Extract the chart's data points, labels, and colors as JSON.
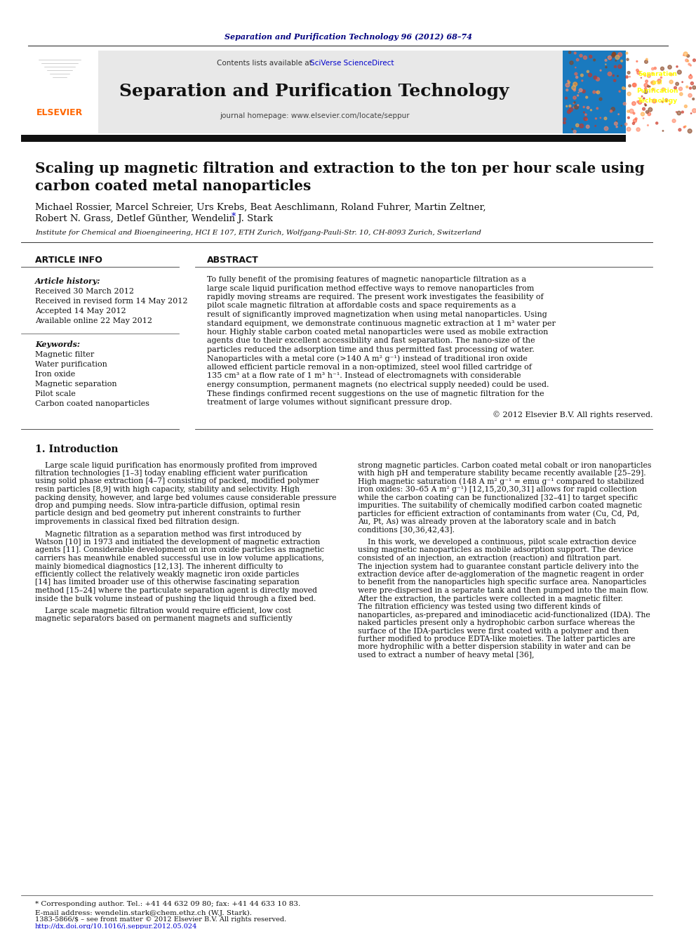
{
  "journal_ref": "Separation and Purification Technology 96 (2012) 68–74",
  "contents_line": "Contents lists available at ",
  "sciverse": "SciVerse ScienceDirect",
  "journal_name": "Separation and Purification Technology",
  "journal_homepage": "journal homepage: www.elsevier.com/locate/seppur",
  "paper_title_line1": "Scaling up magnetic filtration and extraction to the ton per hour scale using",
  "paper_title_line2": "carbon coated metal nanoparticles",
  "authors": "Michael Rossier, Marcel Schreier, Urs Krebs, Beat Aeschlimann, Roland Fuhrer, Martin Zeltner,",
  "authors2": "Robert N. Grass, Detlef Günther, Wendelin J. Stark",
  "authors2_star": "*",
  "affiliation": "Institute for Chemical and Bioengineering, HCI E 107, ETH Zurich, Wolfgang-Pauli-Str. 10, CH-8093 Zurich, Switzerland",
  "article_info_label": "ARTICLE INFO",
  "abstract_label": "ABSTRACT",
  "article_history_label": "Article history:",
  "received": "Received 30 March 2012",
  "received_revised": "Received in revised form 14 May 2012",
  "accepted": "Accepted 14 May 2012",
  "available": "Available online 22 May 2012",
  "keywords_label": "Keywords:",
  "keyword1": "Magnetic filter",
  "keyword2": "Water purification",
  "keyword3": "Iron oxide",
  "keyword4": "Magnetic separation",
  "keyword5": "Pilot scale",
  "keyword6": "Carbon coated nanoparticles",
  "abstract_text": "To fully benefit of the promising features of magnetic nanoparticle filtration as a large scale liquid purification method effective ways to remove nanoparticles from rapidly moving streams are required. The present work investigates the feasibility of pilot scale magnetic filtration at affordable costs and space requirements as a result of significantly improved magnetization when using metal nanoparticles. Using standard equipment, we demonstrate continuous magnetic extraction at 1 m³ water per hour. Highly stable carbon coated metal nanoparticles were used as mobile extraction agents due to their excellent accessibility and fast separation. The nano-size of the particles reduced the adsorption time and thus permitted fast processing of water. Nanoparticles with a metal core (>140 A m² g⁻¹) instead of traditional iron oxide allowed efficient particle removal in a non-optimized, steel wool filled cartridge of 135 cm³ at a flow rate of 1 m³ h⁻¹. Instead of electromagnets with considerable energy consumption, permanent magnets (no electrical supply needed) could be used. These findings confirmed recent suggestions on the use of magnetic filtration for the treatment of large volumes without significant pressure drop.",
  "copyright": "© 2012 Elsevier B.V. All rights reserved.",
  "intro_heading": "1. Introduction",
  "intro_col1_para1": "    Large scale liquid purification has enormously profited from improved filtration technologies [1–3] today enabling efficient water purification using solid phase extraction [4–7] consisting of packed, modified polymer resin particles [8,9] with high capacity, stability and selectivity. High packing density, however, and large bed volumes cause considerable pressure drop and pumping needs. Slow intra-particle diffusion, optimal resin particle design and bed geometry put inherent constraints to further improvements in classical fixed bed filtration design.",
  "intro_col1_para2": "    Magnetic filtration as a separation method was first introduced by Watson [10] in 1973 and initiated the development of magnetic extraction agents [11]. Considerable development on iron oxide particles as magnetic carriers has meanwhile enabled successful use in low volume applications, mainly biomedical diagnostics [12,13]. The inherent difficulty to efficiently collect the relatively weakly magnetic iron oxide particles [14] has limited broader use of this otherwise fascinating separation method [15–24] where the particulate separation agent is directly moved inside the bulk volume instead of pushing the liquid through a fixed bed.",
  "intro_col1_para3": "    Large scale magnetic filtration would require efficient, low cost magnetic separators based on permanent magnets and sufficiently",
  "intro_col2_para1": "strong magnetic particles. Carbon coated metal cobalt or iron nanoparticles with high pH and temperature stability became recently available [25–29]. High magnetic saturation (148 A m² g⁻¹ = emu g⁻¹ compared to stabilized iron oxides: 30–65 A m² g⁻¹) [12,15,20,30,31] allows for rapid collection while the carbon coating can be functionalized [32–41] to target specific impurities. The suitability of chemically modified carbon coated magnetic particles for efficient extraction of contaminants from water (Cu, Cd, Pd, Au, Pt, As) was already proven at the laboratory scale and in batch conditions [30,36,42,43].",
  "intro_col2_para2": "    In this work, we developed a continuous, pilot scale extraction device using magnetic nanoparticles as mobile adsorption support. The device consisted of an injection, an extraction (reaction) and filtration part. The injection system had to guarantee constant particle delivery into the extraction device after de-agglomeration of the magnetic reagent in order to benefit from the nanoparticles high specific surface area. Nanoparticles were pre-dispersed in a separate tank and then pumped into the main flow. After the extraction, the particles were collected in a magnetic filter. The filtration efficiency was tested using two different kinds of nanoparticles, as-prepared and iminodiacetic acid-functionalized (IDA). The naked particles present only a hydrophobic carbon surface whereas the surface of the IDA-particles were first coated with a polymer and then further modified to produce EDTA-like moieties. The latter particles are more hydrophilic with a better dispersion stability in water and can be used to extract a number of heavy metal [36],",
  "footnote_star": "* Corresponding author. Tel.: +41 44 632 09 80; fax: +41 44 633 10 83.",
  "footnote_email": "E-mail address: wendelin.stark@chem.ethz.ch (W.J. Stark).",
  "issn": "1383-5866/$ – see front matter © 2012 Elsevier B.V. All rights reserved.",
  "doi": "http://dx.doi.org/10.1016/j.seppur.2012.05.024",
  "header_bg": "#e8e8e8",
  "journal_ref_color": "#000080",
  "sciverse_color": "#0000cc",
  "elsevier_color": "#ff6600",
  "cover_bg": "#1a7abf",
  "cover_text_color": "#ffff00",
  "body_bg": "#ffffff",
  "text_color": "#000000",
  "link_color": "#0000cc",
  "divider_color": "#000000",
  "thick_divider_color": "#1a1a1a"
}
